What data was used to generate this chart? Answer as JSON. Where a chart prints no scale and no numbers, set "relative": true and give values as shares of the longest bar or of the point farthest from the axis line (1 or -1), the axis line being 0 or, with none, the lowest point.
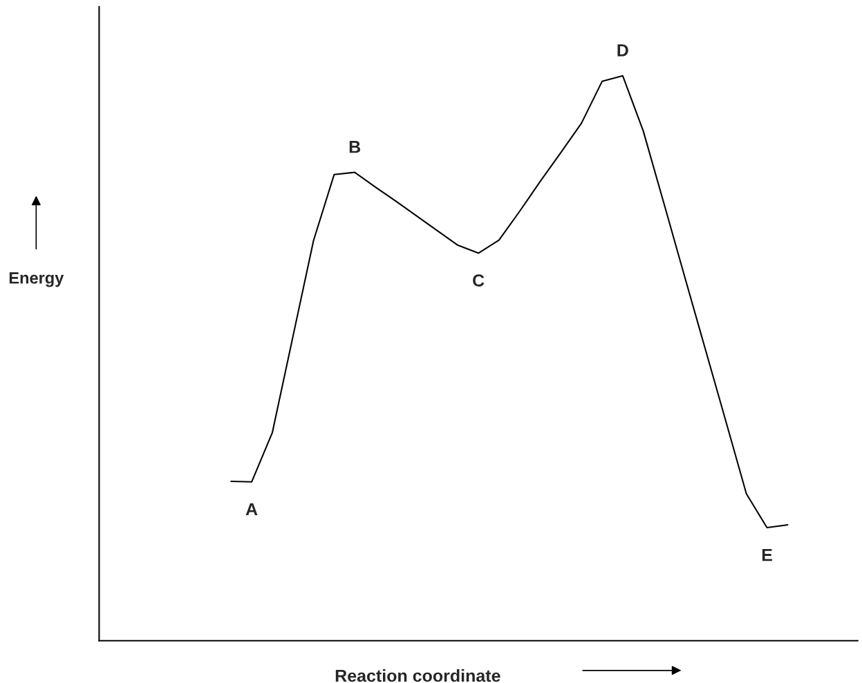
{
  "chart_data": {
    "type": "line",
    "relative": true,
    "xlabel": "Reaction coordinate",
    "ylabel": "Energy",
    "color": "#000000",
    "marker": "none",
    "categories": [
      null,
      null,
      null,
      null,
      null,
      null,
      null,
      null,
      null,
      null,
      null,
      null,
      null,
      null,
      null,
      null,
      null,
      null,
      null,
      null,
      null,
      null,
      null,
      null,
      null,
      null,
      null,
      null,
      null,
      null,
      null,
      null,
      null,
      null,
      null,
      null,
      null
    ],
    "values": [
      null,
      null,
      null,
      null,
      null,
      null,
      0.282,
      0.281,
      0.368,
      0.538,
      0.708,
      0.825,
      0.829,
      0.803,
      0.778,
      0.752,
      0.726,
      0.7,
      0.686,
      0.709,
      0.76,
      0.813,
      0.864,
      0.916,
      0.99,
      1.0,
      0.902,
      0.774,
      0.645,
      0.517,
      0.389,
      0.26,
      0.2,
      0.205,
      null,
      null,
      null
    ],
    "annotations": [
      "A",
      "B",
      "C",
      "D",
      "E"
    ]
  }
}
